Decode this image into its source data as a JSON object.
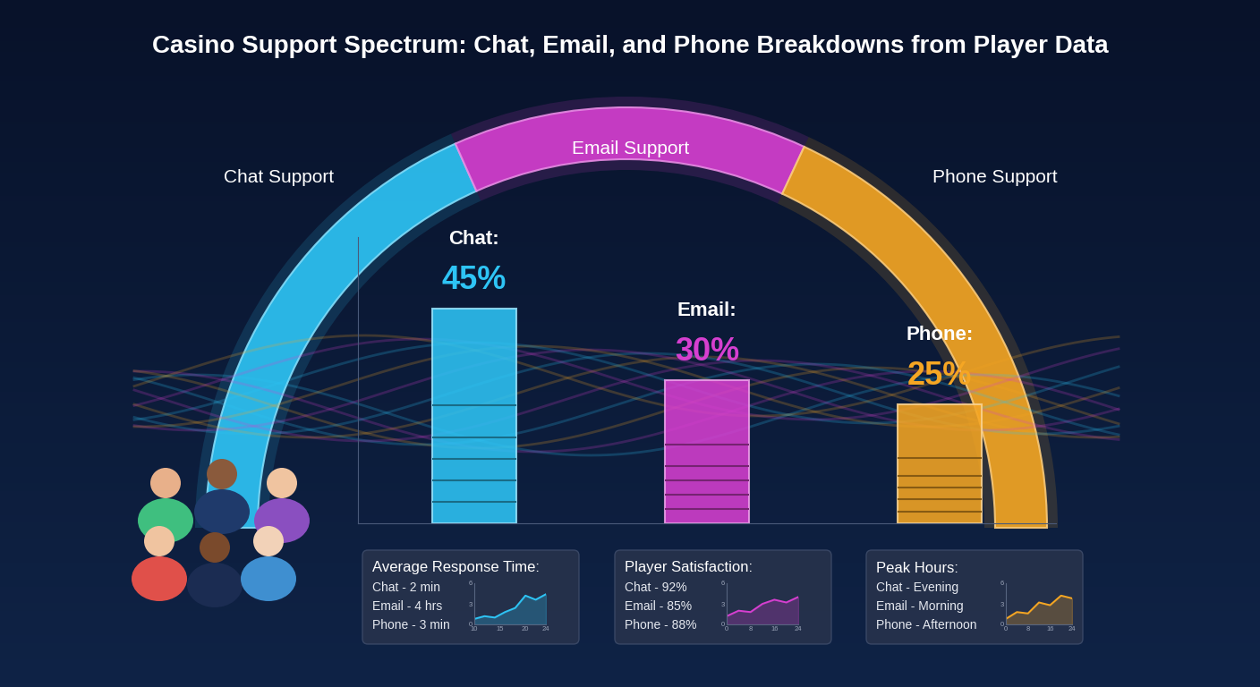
{
  "title": "Casino Support Spectrum: Chat, Email, and Phone Breakdowns from Player Data",
  "arc": [
    {
      "label": "Chat Support",
      "color": "#2ec4f5"
    },
    {
      "label": "Email Support",
      "color": "#d63fd0"
    },
    {
      "label": "Phone Support",
      "color": "#f5a623"
    }
  ],
  "chart_data": [
    {
      "type": "bar",
      "categories": [
        "Chat:",
        "Email:",
        "Phone:"
      ],
      "values": [
        45,
        30,
        25
      ],
      "value_labels": [
        "45%",
        "30%",
        "25%"
      ],
      "colors": [
        "#2ec4f5",
        "#d63fd0",
        "#f5a623"
      ],
      "ylim": [
        0,
        60
      ],
      "data_labels": true,
      "tick_labels": false
    },
    {
      "type": "line",
      "x": [
        10,
        12,
        14,
        16,
        18,
        20,
        22,
        24
      ],
      "values": [
        0.8,
        1.2,
        1.0,
        1.8,
        2.4,
        4.2,
        3.6,
        4.4
      ],
      "xlim": [
        10,
        24
      ],
      "ylim": [
        0,
        6
      ],
      "xticks": [
        10,
        15,
        20,
        24
      ],
      "yticks": [
        0,
        3,
        6
      ],
      "color": "#2ec4f5"
    },
    {
      "type": "line",
      "x": [
        0,
        4,
        8,
        12,
        16,
        20,
        24
      ],
      "values": [
        1.2,
        2.0,
        1.8,
        3.0,
        3.6,
        3.2,
        4.0
      ],
      "xlim": [
        0,
        24
      ],
      "ylim": [
        0,
        6
      ],
      "xticks": [
        0,
        8,
        16,
        24
      ],
      "yticks": [
        0,
        3,
        6
      ],
      "color": "#d63fd0"
    },
    {
      "type": "line",
      "x": [
        0,
        4,
        8,
        12,
        16,
        20,
        24
      ],
      "values": [
        0.8,
        1.8,
        1.6,
        3.2,
        2.8,
        4.2,
        3.8
      ],
      "xlim": [
        0,
        24
      ],
      "ylim": [
        0,
        6
      ],
      "xticks": [
        0,
        8,
        16,
        24
      ],
      "yticks": [
        0,
        3,
        6
      ],
      "color": "#f5a623"
    }
  ],
  "info_boxes": [
    {
      "title": "Average Response Time:",
      "lines": [
        "Chat - 2 min",
        "Email - 4 hrs",
        "Phone - 3 min"
      ]
    },
    {
      "title": "Player Satisfaction:",
      "lines": [
        "Chat - 92%",
        "Email - 85%",
        "Phone - 88%"
      ]
    },
    {
      "title": "Peak Hours:",
      "lines": [
        "Chat - Evening",
        "Email - Morning",
        "Phone - Afternoon"
      ]
    }
  ]
}
